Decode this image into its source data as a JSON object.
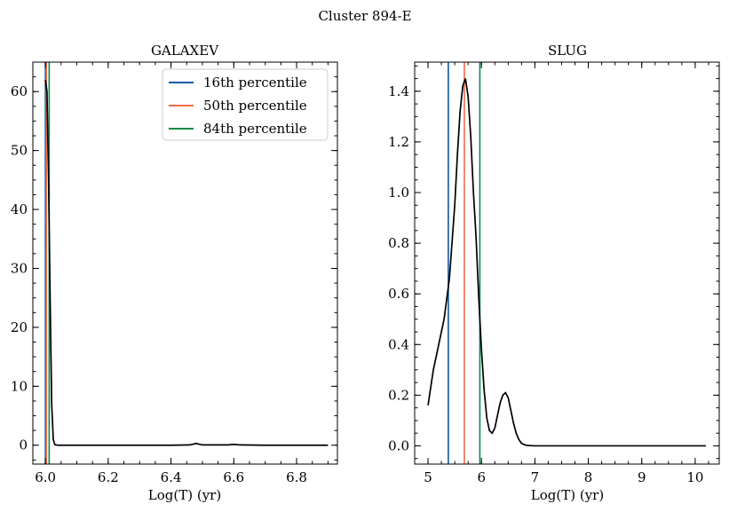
{
  "figure": {
    "title": "Cluster 894-E"
  },
  "colors": {
    "p16": "#0c5aa0",
    "p50": "#f26b4a",
    "p84": "#0b8a47",
    "curve": "#000000"
  },
  "legend": [
    {
      "label": "16th percentile",
      "color_key": "p16"
    },
    {
      "label": "50th percentile",
      "color_key": "p50"
    },
    {
      "label": "84th percentile",
      "color_key": "p84"
    }
  ],
  "chart_data": [
    {
      "type": "line",
      "title": "GALAXEV",
      "xlabel": "Log(T) (yr)",
      "ylabel": "",
      "xlim": [
        5.96,
        6.93
      ],
      "ylim": [
        -3.2,
        65
      ],
      "xticks": [
        6.0,
        6.2,
        6.4,
        6.6,
        6.8
      ],
      "xtick_labels": [
        "6.0",
        "6.2",
        "6.4",
        "6.6",
        "6.8"
      ],
      "yticks": [
        0,
        10,
        20,
        30,
        40,
        50,
        60
      ],
      "ytick_labels": [
        "0",
        "10",
        "20",
        "30",
        "40",
        "50",
        "60"
      ],
      "legend_position": "top-right",
      "series": [
        {
          "x": [
            6.0,
            6.005,
            6.01,
            6.015,
            6.02,
            6.025,
            6.03,
            6.04,
            6.1,
            6.2,
            6.3,
            6.4,
            6.46,
            6.48,
            6.5,
            6.58,
            6.6,
            6.62,
            6.7,
            6.8,
            6.9
          ],
          "y": [
            62,
            60,
            45,
            25,
            7,
            1,
            0.1,
            0,
            0,
            0,
            0,
            0,
            0.05,
            0.3,
            0.05,
            0.05,
            0.15,
            0.05,
            0,
            0,
            0
          ]
        }
      ],
      "vlines": [
        {
          "x": 6.0,
          "color_key": "p16"
        },
        {
          "x": 6.003,
          "color_key": "p50"
        },
        {
          "x": 6.012,
          "color_key": "p84"
        }
      ]
    },
    {
      "type": "line",
      "title": "SLUG",
      "xlabel": "Log(T) (yr)",
      "ylabel": "",
      "xlim": [
        4.75,
        10.45
      ],
      "ylim": [
        -0.072,
        1.515
      ],
      "xticks": [
        5,
        6,
        7,
        8,
        9,
        10
      ],
      "xtick_labels": [
        "5",
        "6",
        "7",
        "8",
        "9",
        "10"
      ],
      "yticks": [
        0.0,
        0.2,
        0.4,
        0.6,
        0.8,
        1.0,
        1.2,
        1.4
      ],
      "ytick_labels": [
        "0.0",
        "0.2",
        "0.4",
        "0.6",
        "0.8",
        "1.0",
        "1.2",
        "1.4"
      ],
      "series": [
        {
          "x": [
            5.0,
            5.1,
            5.2,
            5.3,
            5.4,
            5.5,
            5.55,
            5.6,
            5.65,
            5.7,
            5.75,
            5.8,
            5.85,
            5.9,
            5.95,
            6.0,
            6.05,
            6.1,
            6.15,
            6.2,
            6.25,
            6.3,
            6.35,
            6.4,
            6.45,
            6.5,
            6.55,
            6.6,
            6.65,
            6.7,
            6.75,
            6.8,
            6.85,
            6.9,
            7.0,
            7.5,
            8.0,
            9.0,
            10.0,
            10.2
          ],
          "y": [
            0.16,
            0.3,
            0.4,
            0.5,
            0.66,
            0.95,
            1.15,
            1.32,
            1.42,
            1.45,
            1.38,
            1.22,
            1.0,
            0.82,
            0.58,
            0.38,
            0.22,
            0.11,
            0.06,
            0.05,
            0.07,
            0.12,
            0.17,
            0.2,
            0.21,
            0.19,
            0.14,
            0.09,
            0.05,
            0.025,
            0.01,
            0.005,
            0.002,
            0.001,
            0,
            0,
            0,
            0,
            0,
            0
          ]
        }
      ],
      "vlines": [
        {
          "x": 5.38,
          "color_key": "p16"
        },
        {
          "x": 5.68,
          "color_key": "p50"
        },
        {
          "x": 5.97,
          "color_key": "p84"
        }
      ]
    }
  ]
}
